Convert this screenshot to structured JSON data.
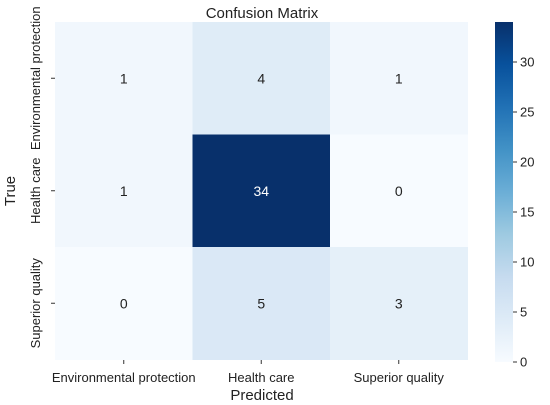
{
  "chart_data": {
    "type": "heatmap",
    "title": "Confusion Matrix",
    "xlabel": "Predicted",
    "ylabel": "True",
    "x_categories": [
      "Environmental protection",
      "Health care",
      "Superior quality"
    ],
    "y_categories": [
      "Environmental protection",
      "Health care",
      "Superior quality"
    ],
    "values": [
      [
        1,
        4,
        1
      ],
      [
        1,
        34,
        0
      ],
      [
        0,
        5,
        3
      ]
    ],
    "colorbar": {
      "min": 0,
      "max": 34,
      "ticks": [
        0,
        5,
        10,
        15,
        20,
        25,
        30
      ],
      "colormap": "Blues",
      "low_color": "#f7fbff",
      "high_color": "#08306b"
    },
    "grid": false,
    "legend": "none"
  }
}
